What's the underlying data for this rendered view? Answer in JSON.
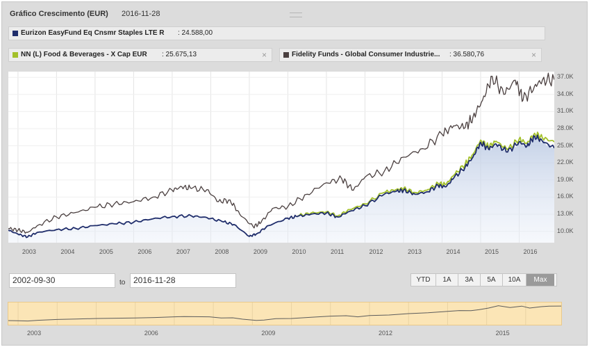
{
  "header": {
    "title": "Gráfico Crescimento (EUR)",
    "date": "2016-11-28"
  },
  "legend": [
    {
      "name": "Eurizon EasyFund Eq Cnsmr Staples LTE R",
      "value": ": 24.588,00",
      "color": "#1f2d6b",
      "closable": false
    },
    {
      "name": "NN (L) Food & Beverages - X Cap EUR",
      "value": ": 25.675,13",
      "color": "#a3c02a",
      "closable": true
    },
    {
      "name": "Fidelity Funds - Global Consumer Industrie...",
      "value": ": 36.580,76",
      "color": "#4a3f3f",
      "closable": true
    }
  ],
  "close_glyph": "×",
  "range": {
    "from": "2002-09-30",
    "to_label": "to",
    "to": "2016-11-28"
  },
  "range_buttons": [
    {
      "label": "YTD",
      "active": false
    },
    {
      "label": "1A",
      "active": false
    },
    {
      "label": "3A",
      "active": false
    },
    {
      "label": "5A",
      "active": false
    },
    {
      "label": "10A",
      "active": false
    },
    {
      "label": "Max",
      "active": true
    }
  ],
  "navigator": {
    "x_ticks": [
      "2003",
      "2006",
      "2009",
      "2012",
      "2015"
    ]
  },
  "chart_data": {
    "type": "line",
    "x_ticks": [
      "2003",
      "2004",
      "2005",
      "2006",
      "2007",
      "2008",
      "2009",
      "2010",
      "2011",
      "2012",
      "2013",
      "2014",
      "2015",
      "2016"
    ],
    "y_ticks": [
      "37.0K",
      "34.0K",
      "31.0K",
      "28.0K",
      "25.0K",
      "22.0K",
      "19.0K",
      "16.0K",
      "13.0K",
      "10.0K"
    ],
    "ylim": [
      8000,
      38000
    ],
    "xlim": [
      2002.75,
      2016.91
    ],
    "grid": true,
    "series": [
      {
        "name": "Fidelity Funds - Global Consumer Industrie...",
        "color": "#4a3f3f",
        "x": [
          2002.75,
          2003.0,
          2003.25,
          2003.5,
          2004.0,
          2004.5,
          2005.0,
          2005.5,
          2006.0,
          2006.5,
          2007.0,
          2007.25,
          2007.5,
          2007.9,
          2008.2,
          2008.5,
          2008.75,
          2009.1,
          2009.3,
          2009.6,
          2010.0,
          2010.5,
          2011.0,
          2011.4,
          2011.7,
          2012.0,
          2012.5,
          2013.0,
          2013.5,
          2014.0,
          2014.3,
          2014.6,
          2014.8,
          2015.05,
          2015.3,
          2015.6,
          2015.9,
          2016.1,
          2016.4,
          2016.6,
          2016.91
        ],
        "y": [
          10500,
          10200,
          9800,
          11000,
          12500,
          13300,
          14200,
          14800,
          15200,
          16000,
          17200,
          17800,
          17500,
          17300,
          15200,
          15500,
          13000,
          10800,
          11500,
          14000,
          14300,
          16500,
          18500,
          19200,
          17200,
          19500,
          20500,
          23000,
          24500,
          27000,
          28500,
          28200,
          30000,
          33000,
          37200,
          34000,
          36500,
          33000,
          35500,
          36500,
          36580
        ]
      },
      {
        "name": "NN (L) Food & Beverages - X Cap EUR",
        "color": "#a3c02a",
        "x": [
          2010.25,
          2010.6,
          2011.0,
          2011.3,
          2011.6,
          2012.0,
          2012.5,
          2012.8,
          2013.0,
          2013.3,
          2013.6,
          2013.9,
          2014.1,
          2014.3,
          2014.6,
          2014.8,
          2015.0,
          2015.2,
          2015.4,
          2015.7,
          2016.0,
          2016.2,
          2016.4,
          2016.6,
          2016.91
        ],
        "y": [
          12700,
          13200,
          13400,
          12700,
          13800,
          14800,
          16800,
          17300,
          17500,
          16800,
          17200,
          18400,
          18200,
          19800,
          21800,
          23500,
          26000,
          24800,
          25800,
          24300,
          26200,
          25400,
          27200,
          26400,
          25675
        ]
      },
      {
        "name": "Eurizon EasyFund Eq Cnsmr Staples LTE R",
        "color": "#1f2d6b",
        "x": [
          2002.75,
          2003.0,
          2003.25,
          2003.5,
          2004.0,
          2004.5,
          2005.0,
          2005.5,
          2006.0,
          2006.5,
          2007.0,
          2007.5,
          2007.9,
          2008.3,
          2008.6,
          2009.0,
          2009.2,
          2009.5,
          2010.0,
          2010.25,
          2010.6,
          2011.0,
          2011.3,
          2011.6,
          2012.0,
          2012.5,
          2012.8,
          2013.0,
          2013.3,
          2013.6,
          2013.9,
          2014.1,
          2014.3,
          2014.6,
          2014.8,
          2015.0,
          2015.2,
          2015.4,
          2015.7,
          2016.0,
          2016.2,
          2016.4,
          2016.6,
          2016.91
        ],
        "y": [
          10200,
          9500,
          9000,
          9800,
          10300,
          10500,
          11000,
          11300,
          11600,
          12200,
          12600,
          12700,
          12400,
          11700,
          11200,
          9100,
          9600,
          11000,
          12300,
          12600,
          13000,
          13200,
          12500,
          13500,
          14500,
          16500,
          17000,
          17200,
          16500,
          16900,
          18000,
          17800,
          19300,
          21300,
          23000,
          25600,
          24400,
          25300,
          23900,
          25700,
          24900,
          26700,
          25800,
          24588
        ]
      }
    ]
  }
}
